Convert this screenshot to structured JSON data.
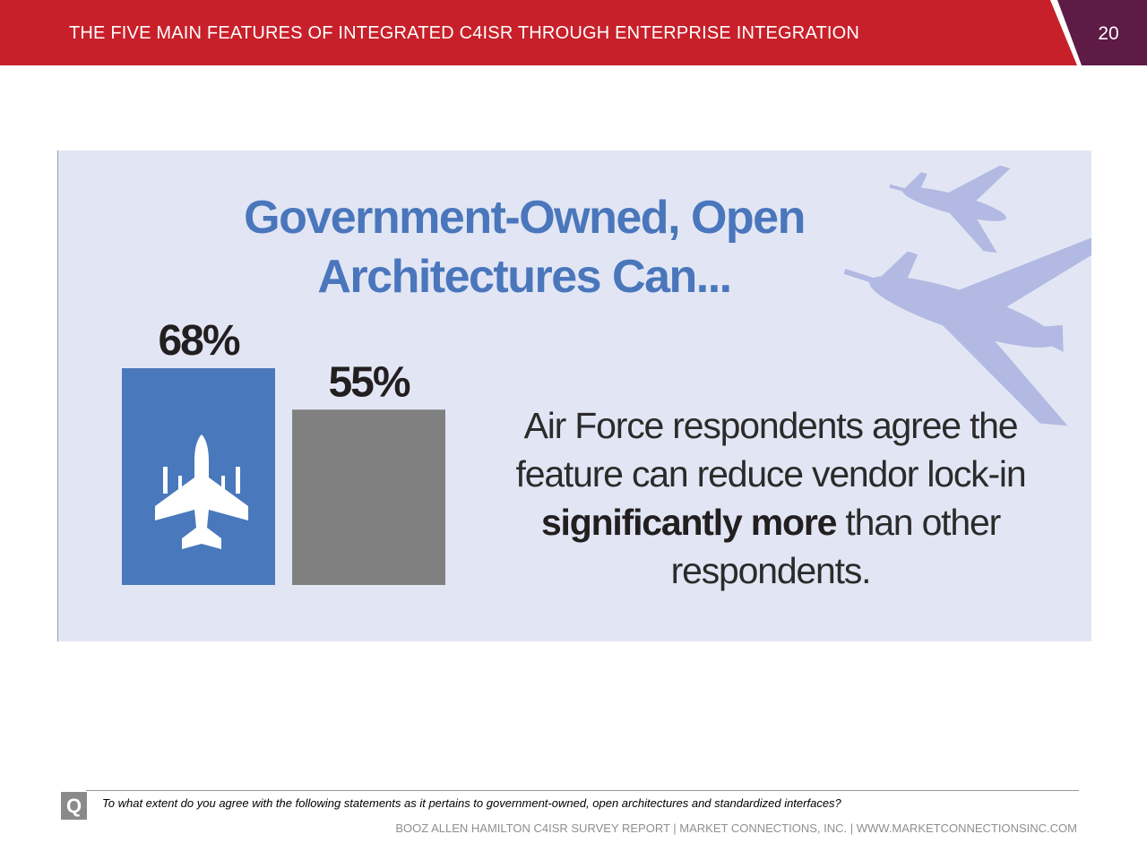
{
  "header": {
    "title": "THE FIVE MAIN FEATURES OF INTEGRATED C4ISR THROUGH ENTERPRISE INTEGRATION",
    "page_number": "20",
    "colors": {
      "red": "#c8202a",
      "purple": "#5e1b45"
    }
  },
  "panel": {
    "title_line1": "Government-Owned, Open",
    "title_line2": "Architectures Can...",
    "caption_line1": "Air Force respondents agree the",
    "caption_line2": "feature can reduce vendor lock-in",
    "caption_bold": "significantly more",
    "caption_line3_rest": " than other",
    "caption_line4": "respondents.",
    "background": "#e2e6f4",
    "decor_icon": "fighter-jets-icon"
  },
  "chart_data": {
    "type": "bar",
    "categories": [
      "",
      ""
    ],
    "values": [
      68,
      55
    ],
    "value_labels": [
      "68%",
      "55%"
    ],
    "colors": [
      "#4a78bc",
      "#808080"
    ],
    "bar_icon": "fighter-jet-icon",
    "title": "Government-Owned, Open Architectures Can...",
    "ylim": [
      0,
      100
    ]
  },
  "footer": {
    "question_icon": "Q",
    "question": "To what extent do you agree with the following statements as it pertains to government-owned, open architectures and standardized interfaces?",
    "source": "BOOZ ALLEN HAMILTON C4ISR SURVEY REPORT   |   MARKET CONNECTIONS, INC.  |  WWW.MARKETCONNECTIONSINC.COM"
  }
}
